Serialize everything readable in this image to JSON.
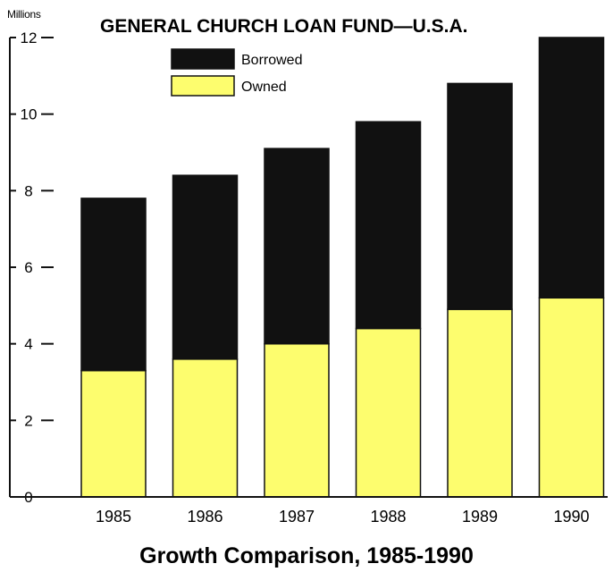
{
  "chart_data": {
    "type": "bar",
    "stacked": true,
    "title": "GENERAL CHURCH LOAN FUND—U.S.A.",
    "subtitle": "Growth Comparison, 1985-1990",
    "ylabel": "Millions",
    "ylim": [
      0,
      12
    ],
    "yticks": [
      {
        "value": 0,
        "label": "0"
      },
      {
        "value": 2,
        "label": "2"
      },
      {
        "value": 4,
        "label": "4"
      },
      {
        "value": 6,
        "label": "6"
      },
      {
        "value": 8,
        "label": "8"
      },
      {
        "value": 10,
        "label": "10"
      },
      {
        "value": 12,
        "label": "12"
      }
    ],
    "categories": [
      "1985",
      "1986",
      "1987",
      "1988",
      "1989",
      "1990"
    ],
    "series": [
      {
        "name": "Owned",
        "color": "#fdfd6e",
        "values": [
          3.3,
          3.6,
          4.0,
          4.4,
          4.9,
          5.2
        ]
      },
      {
        "name": "Borrowed",
        "color": "#111111",
        "values": [
          4.5,
          4.8,
          5.1,
          5.4,
          5.9,
          6.8
        ]
      }
    ],
    "legend": {
      "position": "top-left",
      "items": [
        {
          "label": "Borrowed",
          "color": "#111111"
        },
        {
          "label": "Owned",
          "color": "#fdfd6e"
        }
      ]
    },
    "grid": false
  }
}
